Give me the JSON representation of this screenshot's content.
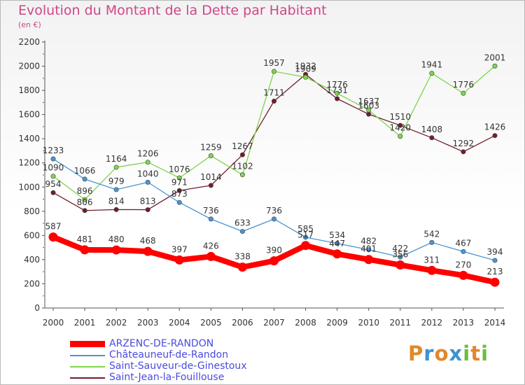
{
  "title": "Evolution du Montant de la Dette par Habitant",
  "unit_label": "(en €)",
  "logo": {
    "letters": [
      "P",
      "r",
      "o",
      "x",
      "i",
      "t",
      "i"
    ],
    "colors": [
      "#e0892b",
      "#3f92d0",
      "#e0892b",
      "#3f92d0",
      "#6bbf3a",
      "#e0892b",
      "#6bbf3a"
    ]
  },
  "chart_data": {
    "type": "line",
    "title": "Evolution du Montant de la Dette par Habitant",
    "ylabel": "(en €)",
    "xlabel": "",
    "ylim": [
      0,
      2200
    ],
    "yticks": [
      0,
      200,
      400,
      600,
      800,
      1000,
      1200,
      1400,
      1600,
      1800,
      2000,
      2200
    ],
    "grid": false,
    "legend_position": "bottom",
    "x": [
      "2000",
      "2001",
      "2002",
      "2003",
      "2004",
      "2005",
      "2006",
      "2007",
      "2008",
      "2009",
      "2010",
      "2011",
      "2012",
      "2013",
      "2014"
    ],
    "series": [
      {
        "name": "ARZENC-DE-RANDON",
        "color": "#ff0000",
        "values": [
          587,
          481,
          480,
          468,
          397,
          426,
          338,
          390,
          517,
          447,
          401,
          356,
          311,
          270,
          213
        ]
      },
      {
        "name": "Châteauneuf-de-Randon",
        "color": "#4a95d4",
        "values": [
          1233,
          1066,
          979,
          1040,
          873,
          736,
          633,
          736,
          585,
          534,
          482,
          422,
          542,
          467,
          394
        ]
      },
      {
        "name": "Saint-Sauveur-de-Ginestoux",
        "color": "#7fd44e",
        "values": [
          1090,
          896,
          1164,
          1206,
          1076,
          1259,
          1102,
          1957,
          1909,
          1776,
          1637,
          1420,
          1941,
          1776,
          2001
        ]
      },
      {
        "name": "Saint-Jean-la-Fouillouse",
        "color": "#6e1f2c",
        "values": [
          954,
          806,
          814,
          813,
          971,
          1014,
          1267,
          1711,
          1932,
          1731,
          1603,
          1510,
          1408,
          1292,
          1426
        ]
      }
    ]
  }
}
